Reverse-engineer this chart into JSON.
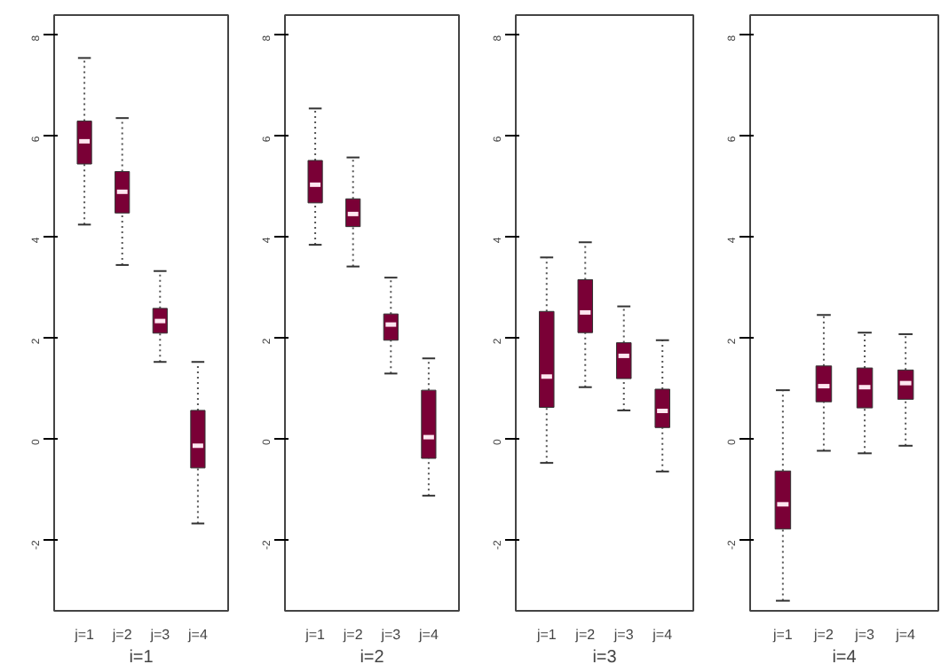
{
  "chart_data": [
    {
      "type": "box",
      "xlabel": "i=1",
      "categories": [
        "j=1",
        "j=2",
        "j=3",
        "j=4"
      ],
      "color": "#7a0036",
      "ylim": [
        -3.4,
        8.4
      ],
      "yticks": [
        -2,
        0,
        2,
        4,
        6,
        8
      ],
      "boxes": [
        {
          "low": 4.25,
          "q1": 5.45,
          "median": 5.9,
          "q3": 6.3,
          "high": 7.55
        },
        {
          "low": 3.45,
          "q1": 4.48,
          "median": 4.9,
          "q3": 5.3,
          "high": 6.36
        },
        {
          "low": 1.53,
          "q1": 2.1,
          "median": 2.34,
          "q3": 2.59,
          "high": 3.33
        },
        {
          "low": -1.67,
          "q1": -0.57,
          "median": -0.13,
          "q3": 0.57,
          "high": 1.53
        }
      ]
    },
    {
      "type": "box",
      "xlabel": "i=2",
      "categories": [
        "j=1",
        "j=2",
        "j=3",
        "j=4"
      ],
      "color": "#7a0036",
      "ylim": [
        -3.4,
        8.4
      ],
      "yticks": [
        -2,
        0,
        2,
        4,
        6,
        8
      ],
      "boxes": [
        {
          "low": 3.85,
          "q1": 4.68,
          "median": 5.04,
          "q3": 5.52,
          "high": 6.55
        },
        {
          "low": 3.42,
          "q1": 4.21,
          "median": 4.46,
          "q3": 4.76,
          "high": 5.58
        },
        {
          "low": 1.3,
          "q1": 1.96,
          "median": 2.27,
          "q3": 2.48,
          "high": 3.2
        },
        {
          "low": -1.12,
          "q1": -0.38,
          "median": 0.04,
          "q3": 0.97,
          "high": 1.6
        }
      ]
    },
    {
      "type": "box",
      "xlabel": "i=3",
      "categories": [
        "j=1",
        "j=2",
        "j=3",
        "j=4"
      ],
      "color": "#7a0036",
      "ylim": [
        -3.4,
        8.4
      ],
      "yticks": [
        -2,
        0,
        2,
        4,
        6,
        8
      ],
      "boxes": [
        {
          "low": -0.47,
          "q1": 0.63,
          "median": 1.24,
          "q3": 2.53,
          "high": 3.6
        },
        {
          "low": 1.03,
          "q1": 2.11,
          "median": 2.51,
          "q3": 3.16,
          "high": 3.9
        },
        {
          "low": 0.57,
          "q1": 1.2,
          "median": 1.65,
          "q3": 1.91,
          "high": 2.63
        },
        {
          "low": -0.64,
          "q1": 0.23,
          "median": 0.56,
          "q3": 0.99,
          "high": 1.96
        }
      ]
    },
    {
      "type": "box",
      "xlabel": "i=4",
      "categories": [
        "j=1",
        "j=2",
        "j=3",
        "j=4"
      ],
      "color": "#7a0036",
      "ylim": [
        -3.4,
        8.4
      ],
      "yticks": [
        -2,
        0,
        2,
        4,
        6,
        8
      ],
      "boxes": [
        {
          "low": -3.2,
          "q1": -1.78,
          "median": -1.29,
          "q3": -0.63,
          "high": 0.97
        },
        {
          "low": -0.23,
          "q1": 0.74,
          "median": 1.05,
          "q3": 1.45,
          "high": 2.46
        },
        {
          "low": -0.28,
          "q1": 0.62,
          "median": 1.03,
          "q3": 1.41,
          "high": 2.11
        },
        {
          "low": -0.13,
          "q1": 0.79,
          "median": 1.11,
          "q3": 1.37,
          "high": 2.08
        }
      ]
    }
  ]
}
